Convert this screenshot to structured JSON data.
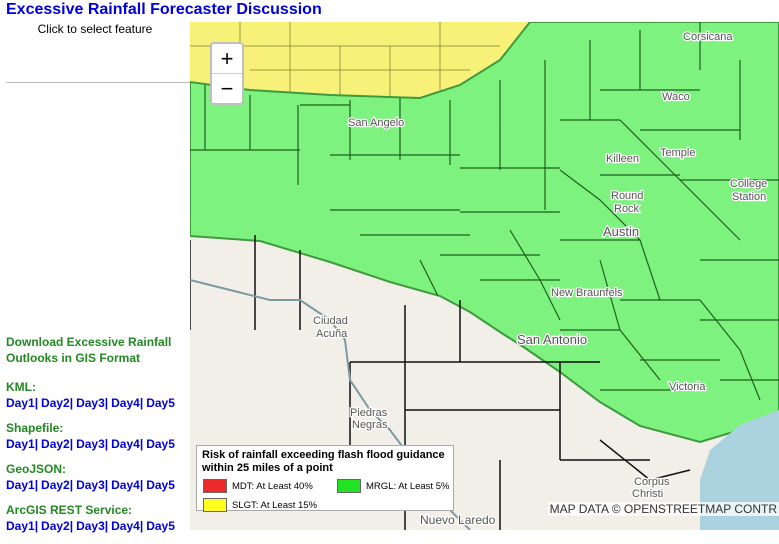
{
  "header": {
    "title": "Excessive Rainfall Forecaster Discussion",
    "subtitle": "Click to select feature"
  },
  "downloads": {
    "heading": "Download Excessive Rainfall Outlooks in GIS Format",
    "separator": "|",
    "groups": [
      {
        "label": "KML:",
        "links": [
          "Day1",
          "Day2",
          "Day3",
          "Day4",
          "Day5"
        ]
      },
      {
        "label": "Shapefile:",
        "links": [
          "Day1",
          "Day2",
          "Day3",
          "Day4",
          "Day5"
        ]
      },
      {
        "label": "GeoJSON:",
        "links": [
          "Day1",
          "Day2",
          "Day3",
          "Day4",
          "Day5"
        ]
      },
      {
        "label": "ArcGIS REST Service:",
        "links": [
          "Day1",
          "Day2",
          "Day3",
          "Day4",
          "Day5"
        ]
      }
    ]
  },
  "map": {
    "zoom_in": "+",
    "zoom_out": "−",
    "labels": [
      "Corsicana",
      "Waco",
      "San Angelo",
      "Killeen",
      "Temple",
      "College",
      "Station",
      "Round",
      "Rock",
      "Austin",
      "New Braunfels",
      "Ciudad",
      "Acuña",
      "San Antonio",
      "Victoria",
      "Piedras",
      "Negras",
      "Corpus",
      "Christi",
      "Nuevo Laredo"
    ],
    "attribution": "MAP DATA © OPENSTREETMAP CONTR"
  },
  "legend": {
    "title": "Risk of rainfall exceeding flash flood guidance within 25 miles of a point",
    "items": [
      {
        "label": "MDT: At Least 40%",
        "color": "#ee2b2b"
      },
      {
        "label": "MRGL: At Least 5%",
        "color": "#22e322"
      },
      {
        "label": "SLGT: At Least 15%",
        "color": "#ffff22"
      }
    ]
  }
}
